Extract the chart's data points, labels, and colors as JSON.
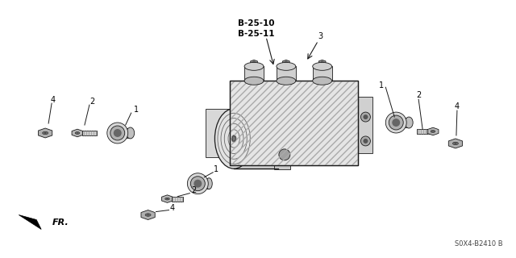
{
  "background_color": "#ffffff",
  "figsize": [
    6.4,
    3.2
  ],
  "dpi": 100,
  "footer_text": "S0X4-B2410 B",
  "label_B2510": "B-25-10",
  "label_B2511": "B-25-11",
  "lc": "#1a1a1a",
  "gray_light": "#e0e0e0",
  "gray_mid": "#c0c0c0",
  "gray_dark": "#888888",
  "gray_darker": "#555555",
  "gray_body": "#d5d5d5",
  "hatch_color": "#999999"
}
